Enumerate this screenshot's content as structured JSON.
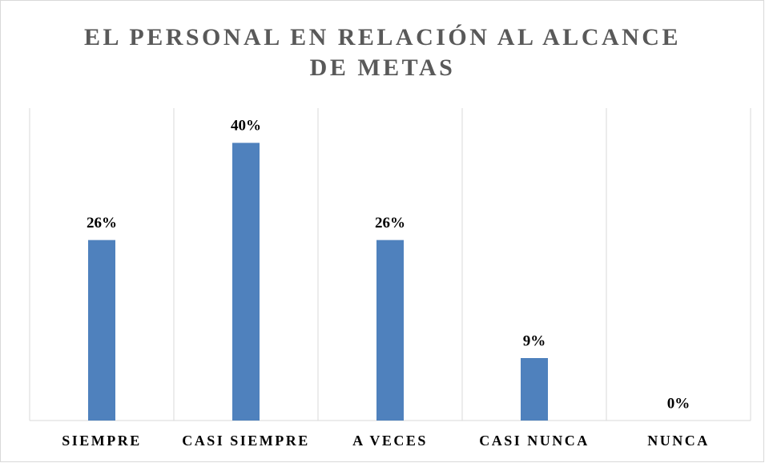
{
  "chart_data": {
    "type": "bar",
    "title": "EL PERSONAL EN RELACIÓN AL ALCANCE DE METAS",
    "categories": [
      "SIEMPRE",
      "CASI SIEMPRE",
      "A VECES",
      "CASI NUNCA",
      "NUNCA"
    ],
    "values": [
      26,
      40,
      26,
      9,
      0
    ],
    "value_labels": [
      "26%",
      "40%",
      "26%",
      "9%",
      "0%"
    ],
    "color": "#4f81bd",
    "ylim": [
      0,
      45
    ]
  }
}
